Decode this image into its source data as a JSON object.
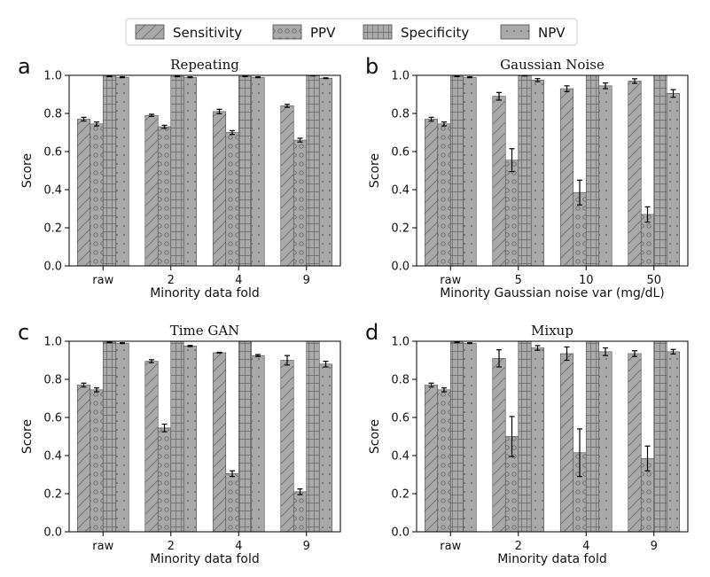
{
  "legend": {
    "entries": [
      "Sensitivity",
      "PPV",
      "Specificity",
      "NPV"
    ],
    "placement": "top-center"
  },
  "colors": {
    "bar_fill": "#a9a9a9",
    "bar_edge": "#4d4d4d",
    "hatch": "#6b6b6b",
    "axis": "#000000"
  },
  "chart_data": [
    {
      "panel": "a",
      "type": "bar",
      "title": "Repeating",
      "xlabel": "Minority data fold",
      "ylabel": "Score",
      "ylim": [
        0,
        1.0
      ],
      "yticks": [
        0.0,
        0.2,
        0.4,
        0.6,
        0.8,
        1.0
      ],
      "ytick_labels": [
        "0.0",
        "0.2",
        "0.4",
        "0.6",
        "0.8",
        "1.0"
      ],
      "categories": [
        "raw",
        "2",
        "4",
        "9"
      ],
      "series": [
        {
          "name": "Sensitivity",
          "values": [
            0.77,
            0.79,
            0.81,
            0.84
          ],
          "errors": [
            0.01,
            0.006,
            0.012,
            0.008
          ]
        },
        {
          "name": "PPV",
          "values": [
            0.745,
            0.73,
            0.7,
            0.66
          ],
          "errors": [
            0.01,
            0.008,
            0.01,
            0.01
          ]
        },
        {
          "name": "Specificity",
          "values": [
            0.995,
            0.995,
            0.995,
            0.998
          ],
          "errors": [
            0.002,
            0.002,
            0.002,
            0.001
          ]
        },
        {
          "name": "NPV",
          "values": [
            0.99,
            0.99,
            0.99,
            0.985
          ],
          "errors": [
            0.002,
            0.002,
            0.002,
            0.002
          ]
        }
      ]
    },
    {
      "panel": "b",
      "type": "bar",
      "title": "Gaussian Noise",
      "xlabel": "Minority Gaussian noise var (mg/dL)",
      "ylabel": "Score",
      "ylim": [
        0,
        1.0
      ],
      "yticks": [
        0.0,
        0.2,
        0.4,
        0.6,
        0.8,
        1.0
      ],
      "ytick_labels": [
        "0.0",
        "0.2",
        "0.4",
        "0.6",
        "0.8",
        "1.0"
      ],
      "categories": [
        "raw",
        "5",
        "10",
        "50"
      ],
      "series": [
        {
          "name": "Sensitivity",
          "values": [
            0.77,
            0.89,
            0.93,
            0.97
          ],
          "errors": [
            0.01,
            0.02,
            0.015,
            0.012
          ]
        },
        {
          "name": "PPV",
          "values": [
            0.745,
            0.555,
            0.385,
            0.27
          ],
          "errors": [
            0.01,
            0.06,
            0.065,
            0.04
          ]
        },
        {
          "name": "Specificity",
          "values": [
            0.995,
            0.998,
            1.0,
            1.0
          ],
          "errors": [
            0.002,
            0.001,
            0.0,
            0.0
          ]
        },
        {
          "name": "NPV",
          "values": [
            0.99,
            0.975,
            0.945,
            0.905
          ],
          "errors": [
            0.002,
            0.008,
            0.015,
            0.02
          ]
        }
      ]
    },
    {
      "panel": "c",
      "type": "bar",
      "title": "Time GAN",
      "xlabel": "Minority data fold",
      "ylabel": "Score",
      "ylim": [
        0,
        1.0
      ],
      "yticks": [
        0.0,
        0.2,
        0.4,
        0.6,
        0.8,
        1.0
      ],
      "ytick_labels": [
        "0.0",
        "0.2",
        "0.4",
        "0.6",
        "0.8",
        "1.0"
      ],
      "categories": [
        "raw",
        "2",
        "4",
        "9"
      ],
      "series": [
        {
          "name": "Sensitivity",
          "values": [
            0.77,
            0.895,
            0.94,
            0.9
          ],
          "errors": [
            0.01,
            0.008,
            0.002,
            0.025
          ]
        },
        {
          "name": "PPV",
          "values": [
            0.745,
            0.545,
            0.305,
            0.21
          ],
          "errors": [
            0.01,
            0.02,
            0.015,
            0.015
          ]
        },
        {
          "name": "Specificity",
          "values": [
            0.995,
            1.0,
            1.0,
            1.0
          ],
          "errors": [
            0.002,
            0.0,
            0.0,
            0.0
          ]
        },
        {
          "name": "NPV",
          "values": [
            0.99,
            0.975,
            0.925,
            0.88
          ],
          "errors": [
            0.002,
            0.003,
            0.005,
            0.015
          ]
        }
      ]
    },
    {
      "panel": "d",
      "type": "bar",
      "title": "Mixup",
      "xlabel": "Minority data fold",
      "ylabel": "Score",
      "ylim": [
        0,
        1.0
      ],
      "yticks": [
        0.0,
        0.2,
        0.4,
        0.6,
        0.8,
        1.0
      ],
      "ytick_labels": [
        "0.0",
        "0.2",
        "0.4",
        "0.6",
        "0.8",
        "1.0"
      ],
      "categories": [
        "raw",
        "2",
        "4",
        "9"
      ],
      "series": [
        {
          "name": "Sensitivity",
          "values": [
            0.77,
            0.91,
            0.935,
            0.935
          ],
          "errors": [
            0.01,
            0.045,
            0.035,
            0.015
          ]
        },
        {
          "name": "PPV",
          "values": [
            0.745,
            0.5,
            0.415,
            0.385
          ],
          "errors": [
            0.01,
            0.105,
            0.125,
            0.065
          ]
        },
        {
          "name": "Specificity",
          "values": [
            0.995,
            1.0,
            1.0,
            1.0
          ],
          "errors": [
            0.002,
            0.0,
            0.0,
            0.0
          ]
        },
        {
          "name": "NPV",
          "values": [
            0.99,
            0.965,
            0.945,
            0.945
          ],
          "errors": [
            0.002,
            0.012,
            0.02,
            0.012
          ]
        }
      ]
    }
  ]
}
